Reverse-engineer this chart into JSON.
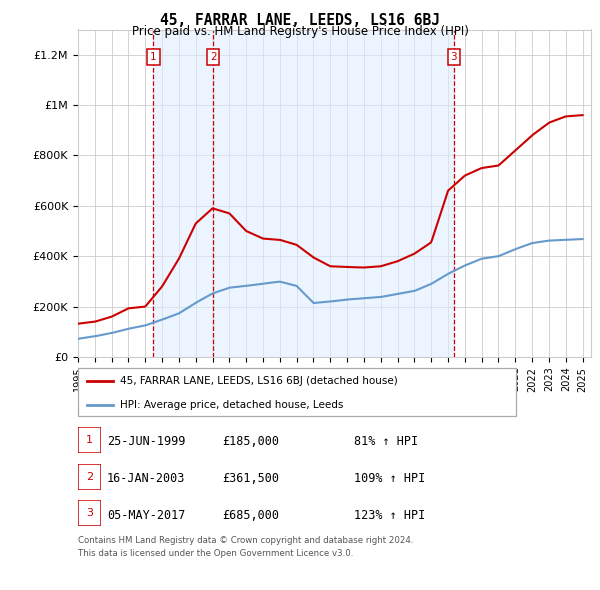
{
  "title": "45, FARRAR LANE, LEEDS, LS16 6BJ",
  "subtitle": "Price paid vs. HM Land Registry's House Price Index (HPI)",
  "xlim": [
    1995.0,
    2025.5
  ],
  "ylim": [
    0,
    1300000
  ],
  "yticks": [
    0,
    200000,
    400000,
    600000,
    800000,
    1000000,
    1200000
  ],
  "ytick_labels": [
    "£0",
    "£200K",
    "£400K",
    "£600K",
    "£800K",
    "£1M",
    "£1.2M"
  ],
  "xtick_years": [
    1995,
    1996,
    1997,
    1998,
    1999,
    2000,
    2001,
    2002,
    2003,
    2004,
    2005,
    2006,
    2007,
    2008,
    2009,
    2010,
    2011,
    2012,
    2013,
    2014,
    2015,
    2016,
    2017,
    2018,
    2019,
    2020,
    2021,
    2022,
    2023,
    2024,
    2025
  ],
  "sale_dates": [
    1999.48,
    2003.04,
    2017.35
  ],
  "sale_prices": [
    185000,
    361500,
    685000
  ],
  "sale_labels": [
    "1",
    "2",
    "3"
  ],
  "legend_line1": "45, FARRAR LANE, LEEDS, LS16 6BJ (detached house)",
  "legend_line2": "HPI: Average price, detached house, Leeds",
  "table_rows": [
    [
      "1",
      "25-JUN-1999",
      "£185,000",
      "81% ↑ HPI"
    ],
    [
      "2",
      "16-JAN-2003",
      "£361,500",
      "109% ↑ HPI"
    ],
    [
      "3",
      "05-MAY-2017",
      "£685,000",
      "123% ↑ HPI"
    ]
  ],
  "footnote1": "Contains HM Land Registry data © Crown copyright and database right 2024.",
  "footnote2": "This data is licensed under the Open Government Licence v3.0.",
  "red_color": "#cc0000",
  "blue_color": "#6699cc",
  "shade_color": "#ddeeff",
  "grid_color": "#cccccc",
  "hpi_key_x": [
    1995,
    1996,
    1997,
    1998,
    1999,
    2000,
    2001,
    2002,
    2003,
    2004,
    2005,
    2006,
    2007,
    2008,
    2009,
    2010,
    2011,
    2012,
    2013,
    2014,
    2015,
    2016,
    2017,
    2018,
    2019,
    2020,
    2021,
    2022,
    2023,
    2024,
    2025
  ],
  "hpi_key_y": [
    72000,
    82000,
    95000,
    112000,
    125000,
    148000,
    173000,
    215000,
    252000,
    275000,
    282000,
    291000,
    299000,
    282000,
    214000,
    220000,
    228000,
    233000,
    238000,
    250000,
    262000,
    290000,
    330000,
    363000,
    390000,
    400000,
    428000,
    452000,
    462000,
    465000,
    468000
  ],
  "red_key_x": [
    1995,
    1996,
    1997,
    1998,
    1999,
    2000,
    2001,
    2002,
    2003,
    2004,
    2005,
    2006,
    2007,
    2008,
    2009,
    2010,
    2011,
    2012,
    2013,
    2014,
    2015,
    2016,
    2017,
    2018,
    2019,
    2020,
    2021,
    2022,
    2023,
    2024,
    2025
  ],
  "red_key_y": [
    132000,
    140000,
    160000,
    193000,
    200000,
    280000,
    390000,
    530000,
    590000,
    570000,
    500000,
    470000,
    465000,
    445000,
    395000,
    360000,
    357000,
    355000,
    360000,
    380000,
    410000,
    455000,
    660000,
    720000,
    750000,
    760000,
    820000,
    880000,
    930000,
    955000,
    960000
  ]
}
